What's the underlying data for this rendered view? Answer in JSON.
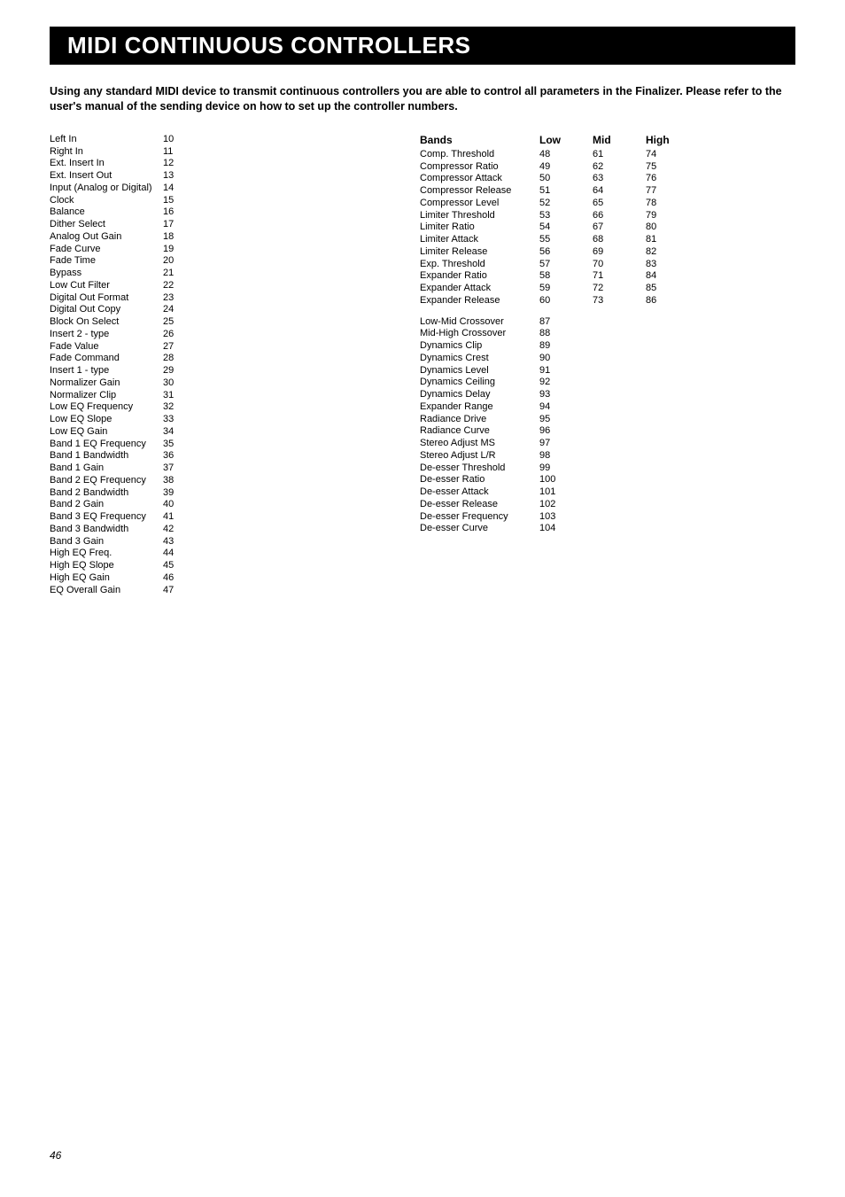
{
  "page": {
    "title": "MIDI CONTINUOUS CONTROLLERS",
    "intro": "Using any standard MIDI device to transmit continuous controllers you are able to control all parameters in the Finalizer. Please refer to the user's manual of the sending device on how to set up the controller numbers.",
    "page_number": "46"
  },
  "left_table": [
    {
      "name": "Left In",
      "cc": "10"
    },
    {
      "name": "Right In",
      "cc": "11"
    },
    {
      "name": "Ext. Insert In",
      "cc": "12"
    },
    {
      "name": "Ext. Insert Out",
      "cc": "13"
    },
    {
      "name": "Input (Analog or Digital)",
      "cc": "14"
    },
    {
      "name": "Clock",
      "cc": "15"
    },
    {
      "name": "Balance",
      "cc": "16"
    },
    {
      "name": "Dither Select",
      "cc": "17"
    },
    {
      "name": "Analog Out Gain",
      "cc": "18"
    },
    {
      "name": "Fade Curve",
      "cc": "19"
    },
    {
      "name": "Fade Time",
      "cc": "20"
    },
    {
      "name": "Bypass",
      "cc": "21"
    },
    {
      "name": "Low Cut Filter",
      "cc": "22"
    },
    {
      "name": "Digital Out Format",
      "cc": "23"
    },
    {
      "name": "Digital Out Copy",
      "cc": "24"
    },
    {
      "name": "Block On Select",
      "cc": "25"
    },
    {
      "name": "Insert 2 - type",
      "cc": "26"
    },
    {
      "name": "Fade Value",
      "cc": "27"
    },
    {
      "name": "Fade Command",
      "cc": "28"
    },
    {
      "name": "Insert 1 - type",
      "cc": "29"
    },
    {
      "name": "Normalizer Gain",
      "cc": "30"
    },
    {
      "name": "Normalizer Clip",
      "cc": "31"
    },
    {
      "name": "Low EQ Frequency",
      "cc": "32"
    },
    {
      "name": "Low EQ Slope",
      "cc": "33"
    },
    {
      "name": "Low EQ Gain",
      "cc": "34"
    },
    {
      "name": "Band 1 EQ Frequency",
      "cc": "35"
    },
    {
      "name": "Band 1 Bandwidth",
      "cc": "36"
    },
    {
      "name": "Band 1 Gain",
      "cc": "37"
    },
    {
      "name": "Band 2 EQ Frequency",
      "cc": "38"
    },
    {
      "name": "Band 2 Bandwidth",
      "cc": "39"
    },
    {
      "name": "Band 2 Gain",
      "cc": "40"
    },
    {
      "name": "Band 3 EQ Frequency",
      "cc": "41"
    },
    {
      "name": "Band 3 Bandwidth",
      "cc": "42"
    },
    {
      "name": "Band 3 Gain",
      "cc": "43"
    },
    {
      "name": "High EQ Freq.",
      "cc": "44"
    },
    {
      "name": "High EQ Slope",
      "cc": "45"
    },
    {
      "name": "High EQ Gain",
      "cc": "46"
    },
    {
      "name": "EQ Overall Gain",
      "cc": "47"
    }
  ],
  "bands_header": {
    "title": "Bands",
    "low": "Low",
    "mid": "Mid",
    "high": "High"
  },
  "bands_rows": [
    {
      "name": "Comp. Threshold",
      "low": "48",
      "mid": "61",
      "high": "74"
    },
    {
      "name": "Compressor Ratio",
      "low": "49",
      "mid": "62",
      "high": "75"
    },
    {
      "name": "Compressor Attack",
      "low": "50",
      "mid": "63",
      "high": "76"
    },
    {
      "name": "Compressor Release",
      "low": "51",
      "mid": "64",
      "high": "77"
    },
    {
      "name": "Compressor Level",
      "low": "52",
      "mid": "65",
      "high": "78"
    },
    {
      "name": "Limiter Threshold",
      "low": "53",
      "mid": "66",
      "high": "79"
    },
    {
      "name": "Limiter Ratio",
      "low": "54",
      "mid": "67",
      "high": "80"
    },
    {
      "name": "Limiter Attack",
      "low": "55",
      "mid": "68",
      "high": "81"
    },
    {
      "name": "Limiter Release",
      "low": "56",
      "mid": "69",
      "high": "82"
    },
    {
      "name": "Exp. Threshold",
      "low": "57",
      "mid": "70",
      "high": "83"
    },
    {
      "name": "Expander Ratio",
      "low": "58",
      "mid": "71",
      "high": "84"
    },
    {
      "name": "Expander Attack",
      "low": "59",
      "mid": "72",
      "high": "85"
    },
    {
      "name": "Expander Release",
      "low": "60",
      "mid": "73",
      "high": "86"
    }
  ],
  "extra_rows": [
    {
      "name": "Low-Mid Crossover",
      "cc": "87"
    },
    {
      "name": "Mid-High Crossover",
      "cc": "88"
    },
    {
      "name": "Dynamics Clip",
      "cc": "89"
    },
    {
      "name": "Dynamics Crest",
      "cc": "90"
    },
    {
      "name": "Dynamics Level",
      "cc": "91"
    },
    {
      "name": "Dynamics Ceiling",
      "cc": "92"
    },
    {
      "name": "Dynamics Delay",
      "cc": "93"
    },
    {
      "name": "Expander Range",
      "cc": "94"
    },
    {
      "name": "Radiance Drive",
      "cc": "95"
    },
    {
      "name": "Radiance Curve",
      "cc": "96"
    },
    {
      "name": "Stereo Adjust MS",
      "cc": "97"
    },
    {
      "name": "Stereo Adjust L/R",
      "cc": "98"
    },
    {
      "name": "De-esser Threshold",
      "cc": "99"
    },
    {
      "name": "De-esser Ratio",
      "cc": "100"
    },
    {
      "name": "De-esser Attack",
      "cc": "101"
    },
    {
      "name": "De-esser Release",
      "cc": "102"
    },
    {
      "name": "De-esser Frequency",
      "cc": "103"
    },
    {
      "name": "De-esser Curve",
      "cc": "104"
    }
  ]
}
